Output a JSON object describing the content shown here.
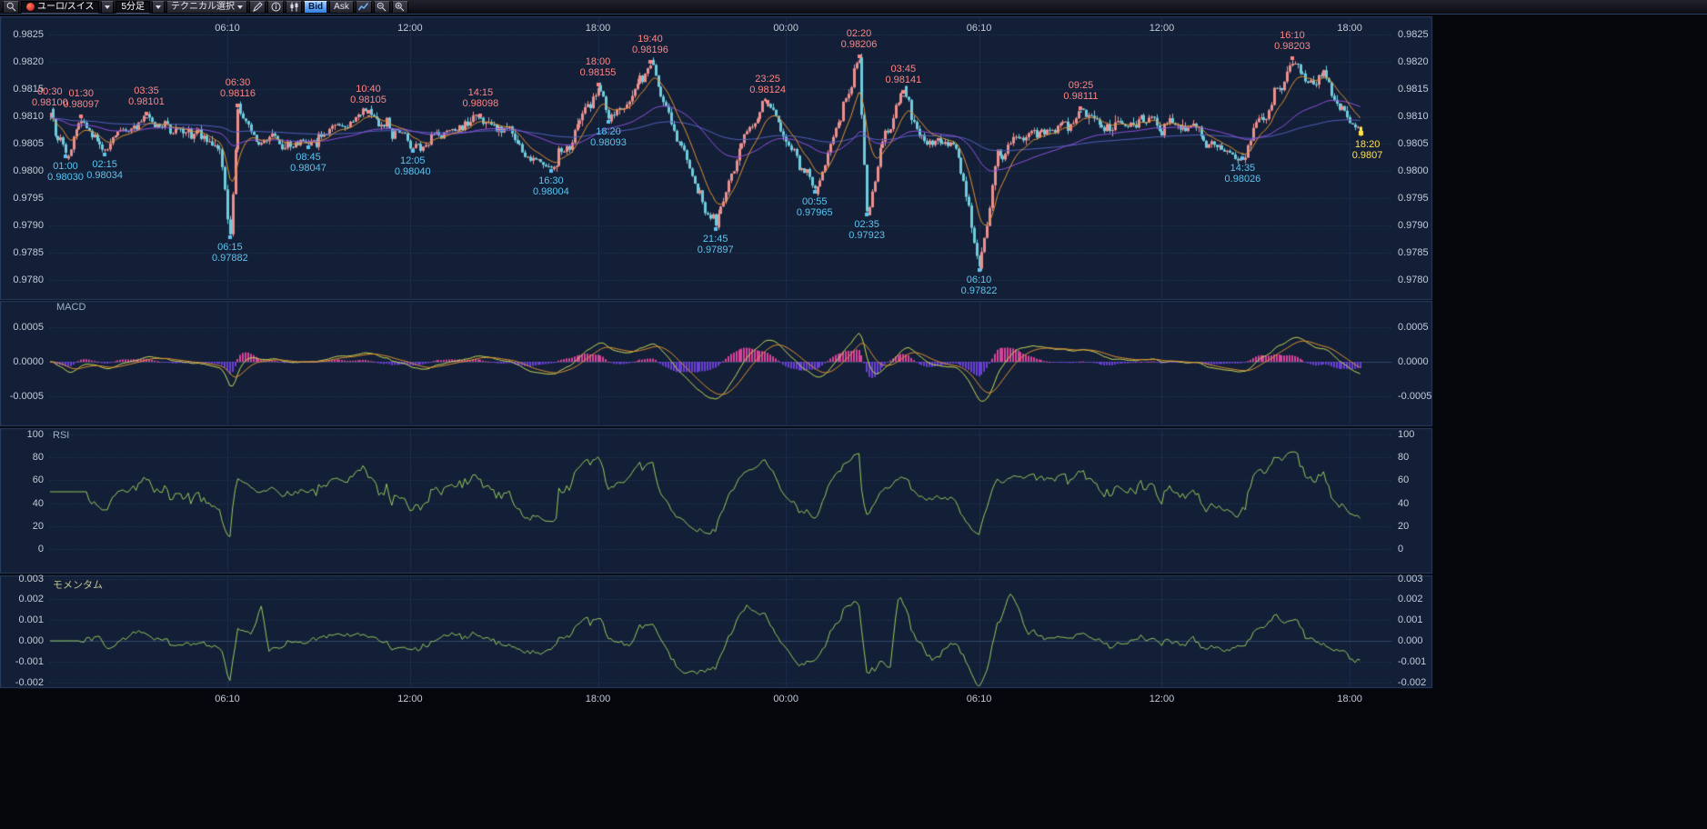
{
  "toolbar": {
    "pair": "ユーロ/スイス",
    "timeframe": "5分足",
    "technical": "テクニカル選択",
    "bid": "Bid",
    "ask": "Ask"
  },
  "colors": {
    "app_bg": "#04060c",
    "panel_bg": "#131f36",
    "panel_border": "#2b4064",
    "grid": "#273b62",
    "grid_vertical": "#1c2d4d",
    "zero_line": "#32486e",
    "axis_text": "#c2cbd9",
    "candle_up": "#e9908f",
    "candle_down": "#6fcbdc",
    "last_candle": "#ffe14d",
    "ma_fast": "#e09030",
    "ma_mid": "#9050e0",
    "ma_slow": "#5060c0",
    "macd_hist_pos": "#d8439a",
    "macd_hist_neg": "#6a3fd6",
    "macd_line": "#c8d855",
    "macd_signal": "#e09030",
    "rsi_line": "#93c95e",
    "momentum_line": "#93c95e",
    "annotation_high": "#ff8585",
    "annotation_low": "#5cc4f0",
    "annotation_current": "#ffe14d"
  },
  "main_chart": {
    "y_ticks": [
      "0.9825",
      "0.9820",
      "0.9815",
      "0.9810",
      "0.9805",
      "0.9800",
      "0.9795",
      "0.9790",
      "0.9785",
      "0.9780"
    ]
  },
  "time_axis": {
    "ticks": [
      {
        "label": "06:10",
        "m": 370
      },
      {
        "label": "12:00",
        "m": 720
      },
      {
        "label": "18:00",
        "m": 1080
      },
      {
        "label": "00:00",
        "m": 1440
      },
      {
        "label": "06:10",
        "m": 1810
      },
      {
        "label": "12:00",
        "m": 2160
      },
      {
        "label": "18:00",
        "m": 2520
      }
    ]
  },
  "panels": {
    "macd": {
      "title": "MACD",
      "y_ticks": [
        "0.0005",
        "0.0000",
        "-0.0005"
      ]
    },
    "rsi": {
      "title": "RSI",
      "y_ticks": [
        "100",
        "80",
        "60",
        "40",
        "20",
        "0"
      ]
    },
    "momentum": {
      "title": "モメンタム",
      "y_ticks": [
        "0.003",
        "0.002",
        "0.001",
        "0.000",
        "-0.001",
        "-0.002"
      ]
    }
  },
  "chart_data": {
    "type": "candlestick",
    "pair": "ユーロ/スイス",
    "interval": "5分足",
    "price_range": [
      0.978,
      0.9825
    ],
    "key_points": [
      {
        "m": 30,
        "p": 0.981,
        "k": "h",
        "time": "00:30",
        "price": "0.98100"
      },
      {
        "m": 60,
        "p": 0.9803,
        "k": "l",
        "time": "01:00",
        "price": "0.98030"
      },
      {
        "m": 90,
        "p": 0.98097,
        "k": "h",
        "time": "01:30",
        "price": "0.98097"
      },
      {
        "m": 135,
        "p": 0.98034,
        "k": "l",
        "time": "02:15",
        "price": "0.98034"
      },
      {
        "m": 215,
        "p": 0.98101,
        "k": "h",
        "time": "03:35",
        "price": "0.98101"
      },
      {
        "m": 375,
        "p": 0.97882,
        "k": "l",
        "time": "06:15",
        "price": "0.97882"
      },
      {
        "m": 390,
        "p": 0.98116,
        "k": "h",
        "time": "06:30",
        "price": "0.98116"
      },
      {
        "m": 525,
        "p": 0.98047,
        "k": "l",
        "time": "08:45",
        "price": "0.98047"
      },
      {
        "m": 640,
        "p": 0.98105,
        "k": "h",
        "time": "10:40",
        "price": "0.98105"
      },
      {
        "m": 725,
        "p": 0.9804,
        "k": "l",
        "time": "12:05",
        "price": "0.98040"
      },
      {
        "m": 855,
        "p": 0.98098,
        "k": "h",
        "time": "14:15",
        "price": "0.98098"
      },
      {
        "m": 990,
        "p": 0.98004,
        "k": "l",
        "time": "16:30",
        "price": "0.98004"
      },
      {
        "m": 1080,
        "p": 0.98155,
        "k": "h",
        "time": "18:00",
        "price": "0.98155"
      },
      {
        "m": 1100,
        "p": 0.98093,
        "k": "l",
        "time": "18:20",
        "price": "0.98093"
      },
      {
        "m": 1180,
        "p": 0.98196,
        "k": "h",
        "time": "19:40",
        "price": "0.98196"
      },
      {
        "m": 1305,
        "p": 0.97897,
        "k": "l",
        "time": "21:45",
        "price": "0.97897"
      },
      {
        "m": 1405,
        "p": 0.98124,
        "k": "h",
        "time": "23:25",
        "price": "0.98124"
      },
      {
        "m": 1495,
        "p": 0.97965,
        "k": "l",
        "time": "00:55",
        "price": "0.97965"
      },
      {
        "m": 1580,
        "p": 0.98206,
        "k": "h",
        "time": "02:20",
        "price": "0.98206"
      },
      {
        "m": 1595,
        "p": 0.97923,
        "k": "l",
        "time": "02:35",
        "price": "0.97923"
      },
      {
        "m": 1665,
        "p": 0.98141,
        "k": "h",
        "time": "03:45",
        "price": "0.98141"
      },
      {
        "m": 1810,
        "p": 0.97822,
        "k": "l",
        "time": "06:10",
        "price": "0.97822"
      },
      {
        "m": 2005,
        "p": 0.98111,
        "k": "h",
        "time": "09:25",
        "price": "0.98111"
      },
      {
        "m": 2315,
        "p": 0.98026,
        "k": "l",
        "time": "14:35",
        "price": "0.98026"
      },
      {
        "m": 2410,
        "p": 0.98203,
        "k": "h",
        "time": "16:10",
        "price": "0.98203"
      }
    ],
    "path_points": [
      {
        "m": 25,
        "p": 0.9806
      },
      {
        "m": 175,
        "p": 0.98075
      },
      {
        "m": 290,
        "p": 0.98065
      },
      {
        "m": 355,
        "p": 0.9804
      },
      {
        "m": 430,
        "p": 0.9806
      },
      {
        "m": 580,
        "p": 0.9808
      },
      {
        "m": 790,
        "p": 0.98075
      },
      {
        "m": 920,
        "p": 0.9806
      },
      {
        "m": 1035,
        "p": 0.9807
      },
      {
        "m": 1240,
        "p": 0.9803
      },
      {
        "m": 1360,
        "p": 0.9806
      },
      {
        "m": 1450,
        "p": 0.9804
      },
      {
        "m": 1625,
        "p": 0.9806
      },
      {
        "m": 1700,
        "p": 0.9806
      },
      {
        "m": 1770,
        "p": 0.9803
      },
      {
        "m": 1845,
        "p": 0.9803
      },
      {
        "m": 1900,
        "p": 0.9806
      },
      {
        "m": 2060,
        "p": 0.98075
      },
      {
        "m": 2120,
        "p": 0.9809
      },
      {
        "m": 2200,
        "p": 0.9808
      },
      {
        "m": 2260,
        "p": 0.9805
      },
      {
        "m": 2450,
        "p": 0.9815
      },
      {
        "m": 2470,
        "p": 0.9818
      },
      {
        "m": 2500,
        "p": 0.9812
      },
      {
        "m": 2540,
        "p": 0.9807
      }
    ],
    "current": {
      "time": "18:20",
      "price": "0.9807",
      "p": 0.9807,
      "m": 2540
    }
  }
}
